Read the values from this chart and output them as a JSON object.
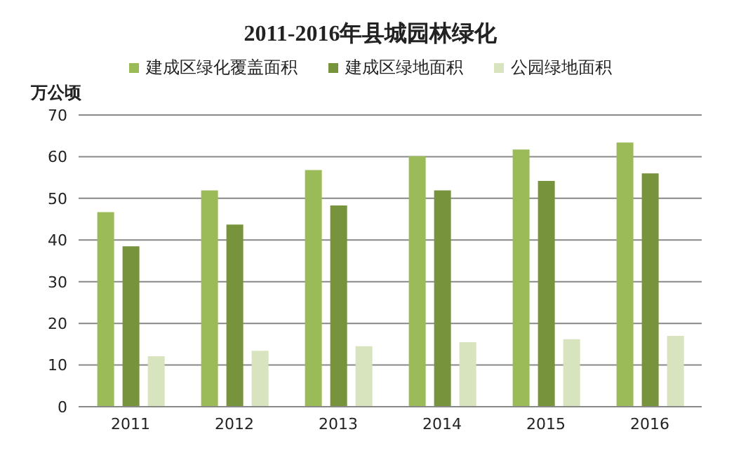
{
  "chart_data": {
    "type": "bar",
    "title": "2011-2016年县城园林绿化",
    "ylabel": "万公顷",
    "categories": [
      "2011",
      "2012",
      "2013",
      "2014",
      "2015",
      "2016"
    ],
    "series": [
      {
        "name": "建成区绿化覆盖面积",
        "color": "#9bbb59",
        "values": [
          46.7,
          51.9,
          56.8,
          60.1,
          61.7,
          63.4
        ]
      },
      {
        "name": "建成区绿地面积",
        "color": "#77933c",
        "values": [
          38.5,
          43.7,
          48.3,
          51.9,
          54.2,
          56.0
        ]
      },
      {
        "name": "公园绿地面积",
        "color": "#d7e4bd",
        "values": [
          12.1,
          13.4,
          14.5,
          15.5,
          16.2,
          17.0
        ]
      }
    ],
    "ylim": [
      0,
      70
    ],
    "yticks": [
      0,
      10,
      20,
      30,
      40,
      50,
      60,
      70
    ],
    "grid": "y",
    "legend": "top"
  }
}
